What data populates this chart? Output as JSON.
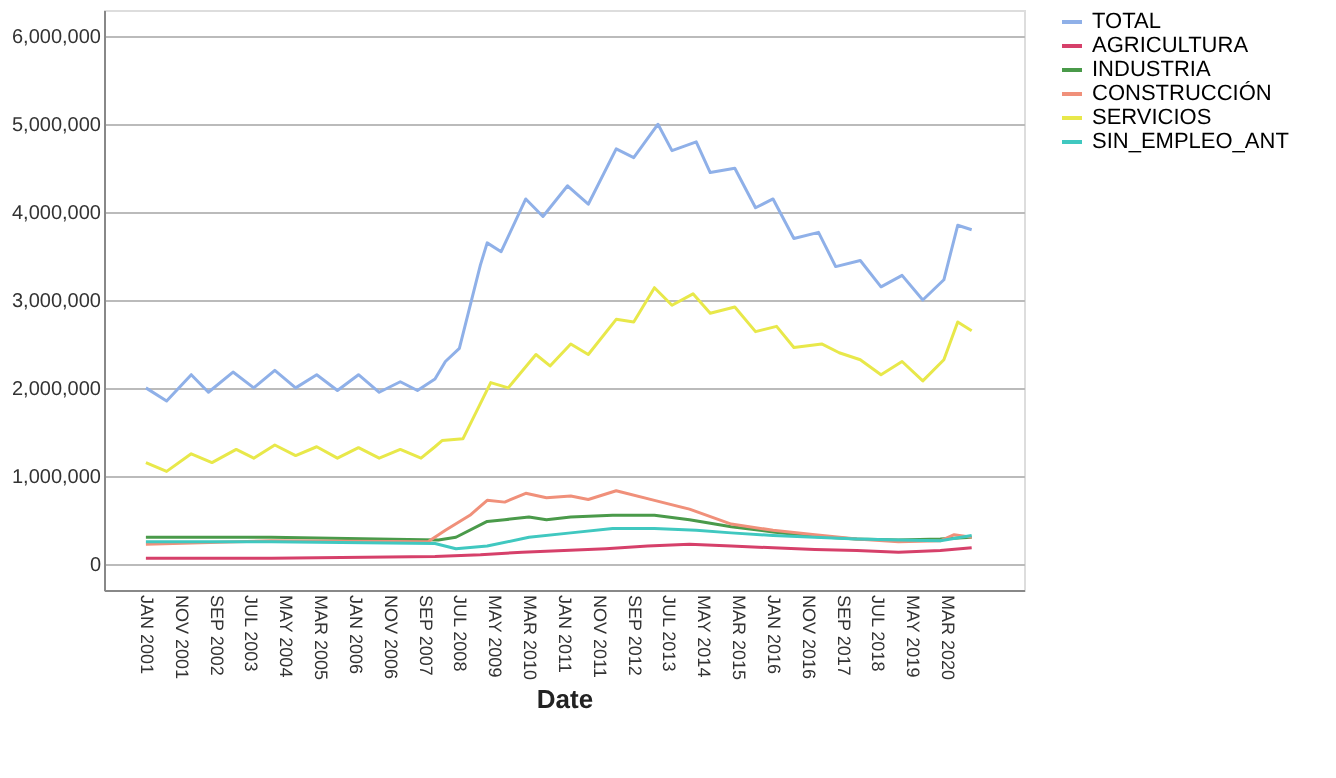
{
  "chart_data": {
    "type": "line",
    "xlabel": "Date",
    "xlim": [
      "2000-01",
      "2022-01"
    ],
    "ylim": [
      -300000,
      6300000
    ],
    "yticks": [
      0,
      {
        "value": 1000000,
        "label": "1,000,000"
      },
      {
        "value": 2000000,
        "label": "2,000,000"
      },
      {
        "value": 3000000,
        "label": "3,000,000"
      },
      {
        "value": 4000000,
        "label": "4,000,000"
      },
      {
        "value": 5000000,
        "label": "5,000,000"
      },
      {
        "value": 6000000,
        "label": "6,000,000"
      }
    ],
    "xticks": [
      {
        "value": "2001-01",
        "label": "JAN 2001"
      },
      {
        "value": "2001-11",
        "label": "NOV 2001"
      },
      {
        "value": "2002-09",
        "label": "SEP 2002"
      },
      {
        "value": "2003-07",
        "label": "JUL 2003"
      },
      {
        "value": "2004-05",
        "label": "MAY 2004"
      },
      {
        "value": "2005-03",
        "label": "MAR 2005"
      },
      {
        "value": "2006-01",
        "label": "JAN 2006"
      },
      {
        "value": "2006-11",
        "label": "NOV 2006"
      },
      {
        "value": "2007-09",
        "label": "SEP 2007"
      },
      {
        "value": "2008-07",
        "label": "JUL 2008"
      },
      {
        "value": "2009-05",
        "label": "MAY 2009"
      },
      {
        "value": "2010-03",
        "label": "MAR 2010"
      },
      {
        "value": "2011-01",
        "label": "JAN 2011"
      },
      {
        "value": "2011-11",
        "label": "NOV 2011"
      },
      {
        "value": "2012-09",
        "label": "SEP 2012"
      },
      {
        "value": "2013-07",
        "label": "JUL 2013"
      },
      {
        "value": "2014-05",
        "label": "MAY 2014"
      },
      {
        "value": "2015-03",
        "label": "MAR 2015"
      },
      {
        "value": "2016-01",
        "label": "JAN 2016"
      },
      {
        "value": "2016-11",
        "label": "NOV 2016"
      },
      {
        "value": "2017-09",
        "label": "SEP 2017"
      },
      {
        "value": "2018-07",
        "label": "JUL 2018"
      },
      {
        "value": "2019-05",
        "label": "MAY 2019"
      },
      {
        "value": "2020-03",
        "label": "MAR 2020"
      }
    ],
    "grid": "y",
    "legend": "top right",
    "series": [
      {
        "name": "TOTAL",
        "color": "#8fb0e8",
        "x": [
          "2001-01",
          "2001-07",
          "2002-02",
          "2002-07",
          "2003-02",
          "2003-08",
          "2004-02",
          "2004-08",
          "2005-02",
          "2005-08",
          "2006-02",
          "2006-08",
          "2007-02",
          "2007-07",
          "2007-12",
          "2008-03",
          "2008-07",
          "2009-01",
          "2009-03",
          "2009-07",
          "2010-02",
          "2010-07",
          "2011-02",
          "2011-08",
          "2012-04",
          "2012-09",
          "2013-04",
          "2013-08",
          "2014-03",
          "2014-07",
          "2015-02",
          "2015-08",
          "2016-01",
          "2016-07",
          "2017-02",
          "2017-07",
          "2018-02",
          "2018-08",
          "2019-02",
          "2019-08",
          "2020-02",
          "2020-06",
          "2020-10"
        ],
        "values": [
          2000000,
          1850000,
          2150000,
          1950000,
          2180000,
          2000000,
          2200000,
          2000000,
          2150000,
          1970000,
          2150000,
          1950000,
          2070000,
          1970000,
          2100000,
          2300000,
          2450000,
          3400000,
          3650000,
          3550000,
          4150000,
          3950000,
          4300000,
          4090000,
          4720000,
          4620000,
          5000000,
          4700000,
          4800000,
          4450000,
          4500000,
          4050000,
          4150000,
          3700000,
          3770000,
          3380000,
          3450000,
          3150000,
          3280000,
          3000000,
          3230000,
          3850000,
          3800000
        ]
      },
      {
        "name": "AGRICULTURA",
        "color": "#d6406a",
        "x": [
          "2001-01",
          "2004-01",
          "2007-12",
          "2009-01",
          "2010-01",
          "2011-01",
          "2012-01",
          "2013-01",
          "2014-01",
          "2015-01",
          "2016-01",
          "2017-01",
          "2018-01",
          "2019-01",
          "2020-01",
          "2020-10"
        ],
        "values": [
          60000,
          60000,
          80000,
          100000,
          130000,
          150000,
          170000,
          200000,
          220000,
          200000,
          180000,
          160000,
          150000,
          130000,
          150000,
          180000
        ]
      },
      {
        "name": "INDUSTRIA",
        "color": "#4a9a4a",
        "x": [
          "2001-01",
          "2004-01",
          "2008-01",
          "2008-06",
          "2009-03",
          "2009-08",
          "2010-03",
          "2010-08",
          "2011-03",
          "2012-03",
          "2013-03",
          "2014-01",
          "2015-01",
          "2016-01",
          "2017-01",
          "2018-01",
          "2019-01",
          "2020-01",
          "2020-10"
        ],
        "values": [
          300000,
          300000,
          270000,
          300000,
          480000,
          500000,
          530000,
          500000,
          530000,
          550000,
          550000,
          500000,
          420000,
          360000,
          310000,
          280000,
          270000,
          280000,
          300000
        ]
      },
      {
        "name": "CONSTRUCCIÓN",
        "color": "#f0907a",
        "x": [
          "2001-01",
          "2004-01",
          "2007-10",
          "2008-03",
          "2008-10",
          "2009-03",
          "2009-08",
          "2010-02",
          "2010-08",
          "2011-03",
          "2011-08",
          "2012-04",
          "2013-03",
          "2014-01",
          "2015-01",
          "2016-01",
          "2017-01",
          "2018-01",
          "2019-01",
          "2020-01",
          "2020-05",
          "2020-10"
        ],
        "values": [
          220000,
          260000,
          250000,
          380000,
          550000,
          720000,
          700000,
          800000,
          750000,
          770000,
          730000,
          830000,
          720000,
          620000,
          450000,
          380000,
          330000,
          280000,
          250000,
          260000,
          330000,
          300000
        ]
      },
      {
        "name": "SERVICIOS",
        "color": "#e8e84a",
        "x": [
          "2001-01",
          "2001-07",
          "2002-02",
          "2002-08",
          "2003-03",
          "2003-08",
          "2004-02",
          "2004-08",
          "2005-02",
          "2005-08",
          "2006-02",
          "2006-08",
          "2007-02",
          "2007-08",
          "2007-12",
          "2008-02",
          "2008-08",
          "2009-04",
          "2009-09",
          "2010-05",
          "2010-09",
          "2011-03",
          "2011-08",
          "2012-04",
          "2012-09",
          "2013-03",
          "2013-08",
          "2014-02",
          "2014-07",
          "2015-02",
          "2015-08",
          "2016-02",
          "2016-07",
          "2017-03",
          "2017-08",
          "2018-02",
          "2018-08",
          "2019-02",
          "2019-08",
          "2020-02",
          "2020-06",
          "2020-10"
        ],
        "values": [
          1150000,
          1050000,
          1250000,
          1150000,
          1300000,
          1200000,
          1350000,
          1230000,
          1330000,
          1200000,
          1320000,
          1200000,
          1300000,
          1200000,
          1330000,
          1400000,
          1420000,
          2060000,
          2000000,
          2380000,
          2250000,
          2500000,
          2380000,
          2780000,
          2750000,
          3140000,
          2940000,
          3070000,
          2850000,
          2920000,
          2640000,
          2700000,
          2460000,
          2500000,
          2400000,
          2320000,
          2150000,
          2300000,
          2080000,
          2320000,
          2750000,
          2650000
        ]
      },
      {
        "name": "SIN_EMPLEO_ANT",
        "color": "#40c8c0",
        "x": [
          "2001-01",
          "2004-01",
          "2007-12",
          "2008-06",
          "2009-03",
          "2010-03",
          "2011-03",
          "2012-03",
          "2013-03",
          "2014-03",
          "2015-01",
          "2016-01",
          "2017-01",
          "2018-01",
          "2019-01",
          "2020-01",
          "2020-10"
        ],
        "values": [
          250000,
          250000,
          230000,
          170000,
          200000,
          300000,
          350000,
          400000,
          400000,
          380000,
          350000,
          320000,
          300000,
          280000,
          270000,
          260000,
          320000
        ]
      }
    ]
  }
}
